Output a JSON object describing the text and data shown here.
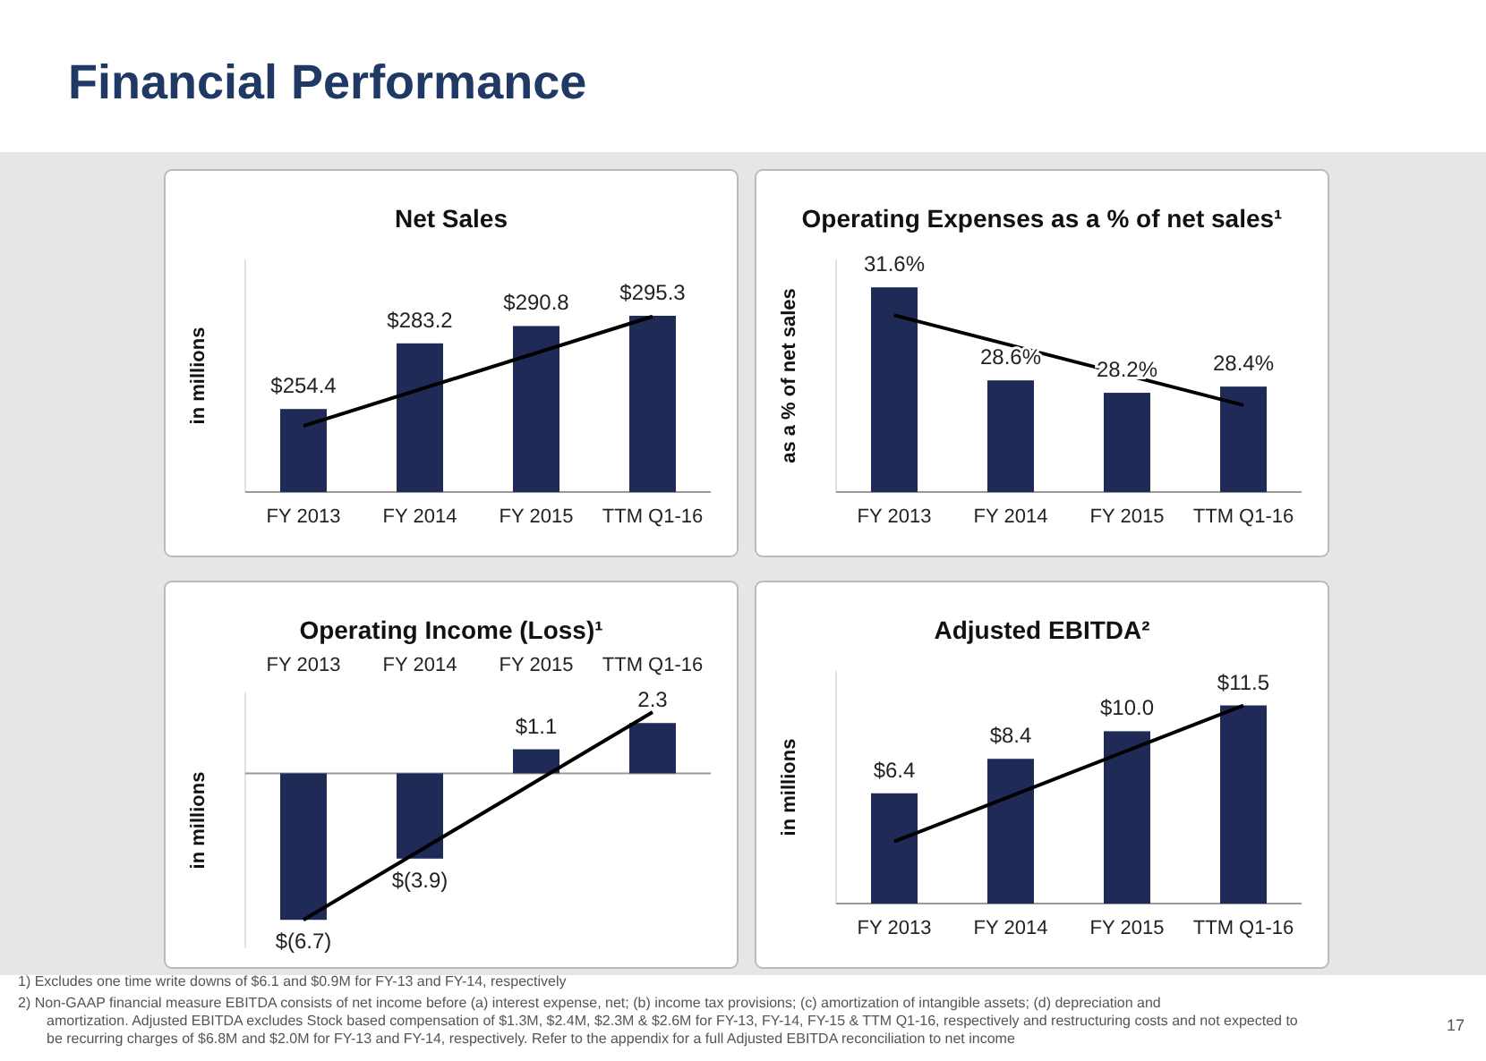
{
  "chart_data": [
    {
      "type": "other",
      "title": "Financial Performance",
      "annotations": [
        "1)   Excludes one time write downs of $6.1 and $0.9M for FY-13 and FY-14, respectively",
        "2)   Non-GAAP financial measure EBITDA consists of net income before (a) interest expense, net; (b) income tax provisions; (c) amortization of intangible assets; (d) depreciation and amortization.  Adjusted EBITDA excludes Stock based compensation of $1.3M, $2.4M, $2.3M & $2.6M for FY-13, FY-14, FY-15 & TTM Q1-16, respectively and restructuring costs and not expected to be recurring charges of $6.8M and $2.0M for FY-13 and FY-14, respectively.  Refer to the appendix for a full Adjusted EBITDA reconciliation to net income",
        "17"
      ]
    },
    {
      "type": "bar",
      "title": "Net Sales",
      "ylabel": "in millions",
      "categories": [
        "FY 2013",
        "FY 2014",
        "FY 2015",
        "TTM Q1-16"
      ],
      "ylim": [
        218,
        320
      ],
      "series": [
        {
          "type": "bar",
          "color": "#1f2a56",
          "values": [
            254.4,
            283.2,
            290.8,
            295.3
          ],
          "value_labels": [
            "$254.4",
            "$283.2",
            "$290.8",
            "$295.3"
          ]
        },
        {
          "type": "line",
          "color": "#000000",
          "x": [
            "FY 2013",
            "TTM Q1-16"
          ],
          "values": [
            247,
            295
          ]
        }
      ]
    },
    {
      "type": "bar",
      "title": "Operating Expenses as a % of net sales¹",
      "ylabel": "as a % of net sales",
      "categories": [
        "FY 2013",
        "FY 2014",
        "FY 2015",
        "TTM Q1-16"
      ],
      "ylim": [
        25,
        32.5
      ],
      "series": [
        {
          "type": "bar",
          "color": "#1f2a56",
          "values": [
            31.6,
            28.6,
            28.2,
            28.4
          ],
          "value_labels": [
            "31.6%",
            "28.6%",
            "28.2%",
            "28.4%"
          ]
        },
        {
          "type": "line",
          "color": "#000000",
          "x": [
            "FY 2013",
            "TTM Q1-16"
          ],
          "values": [
            30.7,
            27.8
          ]
        }
      ]
    },
    {
      "type": "bar",
      "title": "Operating Income (Loss)¹",
      "ylabel": "in millions",
      "categories": [
        "FY 2013",
        "FY 2014",
        "FY 2015",
        "TTM Q1-16"
      ],
      "ylim": [
        -8,
        3.7
      ],
      "series": [
        {
          "type": "bar",
          "color": "#1f2a56",
          "values": [
            -6.7,
            -3.9,
            1.1,
            2.3
          ],
          "value_labels": [
            "$(6.7)",
            "$(3.9)",
            "$1.1",
            "2.3"
          ]
        },
        {
          "type": "line",
          "color": "#000000",
          "x": [
            "FY 2013",
            "TTM Q1-16"
          ],
          "values": [
            -6.7,
            2.8
          ]
        }
      ]
    },
    {
      "type": "bar",
      "title": "Adjusted EBITDA²",
      "ylabel": "in millions",
      "categories": [
        "FY 2013",
        "FY 2014",
        "FY 2015",
        "TTM Q1-16"
      ],
      "ylim": [
        0,
        13.5
      ],
      "series": [
        {
          "type": "bar",
          "color": "#1f2a56",
          "values": [
            6.4,
            8.4,
            10.0,
            11.5
          ],
          "value_labels": [
            "$6.4",
            "$8.4",
            "$10.0",
            "$11.5"
          ]
        },
        {
          "type": "line",
          "color": "#000000",
          "x": [
            "FY 2013",
            "TTM Q1-16"
          ],
          "values": [
            3.6,
            11.5
          ]
        }
      ]
    }
  ]
}
